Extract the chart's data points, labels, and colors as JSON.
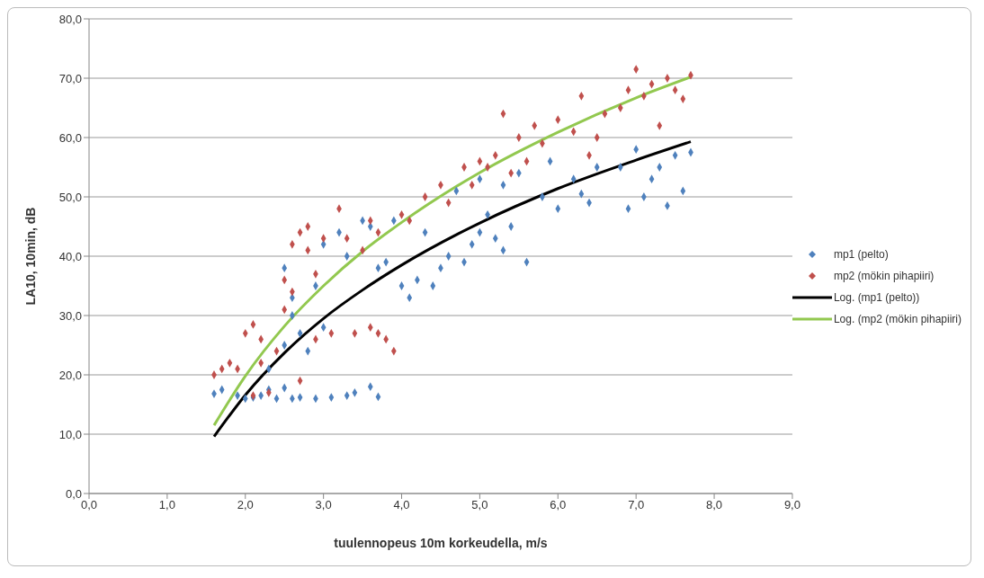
{
  "chart_data": {
    "type": "scatter",
    "xlabel": "tuulennopeus 10m korkeudella, m/s",
    "ylabel": "LA10, 10min, dB",
    "xlim": [
      0,
      9
    ],
    "ylim": [
      0,
      80
    ],
    "xticks": [
      {
        "value": 0,
        "label": "0,0"
      },
      {
        "value": 1,
        "label": "1,0"
      },
      {
        "value": 2,
        "label": "2,0"
      },
      {
        "value": 3,
        "label": "3,0"
      },
      {
        "value": 4,
        "label": "4,0"
      },
      {
        "value": 5,
        "label": "5,0"
      },
      {
        "value": 6,
        "label": "6,0"
      },
      {
        "value": 7,
        "label": "7,0"
      },
      {
        "value": 8,
        "label": "8,0"
      },
      {
        "value": 9,
        "label": "9,0"
      }
    ],
    "yticks": [
      {
        "value": 0,
        "label": "0,0"
      },
      {
        "value": 10,
        "label": "10,0"
      },
      {
        "value": 20,
        "label": "20,0"
      },
      {
        "value": 30,
        "label": "30,0"
      },
      {
        "value": 40,
        "label": "40,0"
      },
      {
        "value": 50,
        "label": "50,0"
      },
      {
        "value": 60,
        "label": "60,0"
      },
      {
        "value": 70,
        "label": "70,0"
      },
      {
        "value": 80,
        "label": "80,0"
      }
    ],
    "grid": "y",
    "legend": "right",
    "series": [
      {
        "name": "mp1 (pelto)",
        "marker": "diamond",
        "color": "#4f81bd",
        "x": [
          1.6,
          1.7,
          1.9,
          2.0,
          2.1,
          2.2,
          2.3,
          2.4,
          2.5,
          2.6,
          2.7,
          2.9,
          3.1,
          3.3,
          3.4,
          3.6,
          3.7,
          2.3,
          2.5,
          2.6,
          2.7,
          2.5,
          2.6,
          2.8,
          3.0,
          2.9,
          3.0,
          3.2,
          3.3,
          3.5,
          3.6,
          3.7,
          3.8,
          4.0,
          4.1,
          4.2,
          4.4,
          4.5,
          4.6,
          4.8,
          4.9,
          5.0,
          5.1,
          5.2,
          5.3,
          5.4,
          5.6,
          4.7,
          5.0,
          5.3,
          5.5,
          5.8,
          6.0,
          6.2,
          6.4,
          6.5,
          6.8,
          7.0,
          7.1,
          7.2,
          7.4,
          7.5,
          7.6,
          7.7,
          6.9,
          6.3,
          5.9,
          7.3,
          3.9,
          4.3
        ],
        "values": [
          16.8,
          17.5,
          16.5,
          16.0,
          16.2,
          16.5,
          17.5,
          16.0,
          17.8,
          16.0,
          16.2,
          16.0,
          16.2,
          16.5,
          17.0,
          18.0,
          16.3,
          21,
          25,
          30,
          27,
          38,
          33,
          24,
          28,
          35,
          42,
          44,
          40,
          46,
          45,
          38,
          39,
          35,
          33,
          36,
          35,
          38,
          40,
          39,
          42,
          44,
          47,
          43,
          41,
          45,
          39,
          51,
          53,
          52,
          54,
          50,
          48,
          53,
          49,
          55,
          55,
          58,
          50,
          53,
          48.5,
          57,
          51,
          57.5,
          48,
          50.5,
          56,
          55,
          46,
          44
        ]
      },
      {
        "name": "mp2 (mökin pihapiiri)",
        "marker": "diamond",
        "color": "#c0504d",
        "x": [
          1.6,
          1.7,
          1.8,
          1.9,
          2.0,
          2.1,
          2.2,
          2.1,
          2.3,
          2.2,
          2.4,
          2.5,
          2.5,
          2.6,
          2.6,
          2.7,
          2.8,
          2.8,
          2.9,
          3.0,
          3.2,
          3.3,
          3.5,
          3.6,
          3.7,
          3.6,
          3.7,
          3.8,
          3.9,
          3.4,
          3.1,
          2.9,
          2.7,
          4.0,
          4.1,
          4.3,
          4.5,
          4.6,
          4.8,
          4.9,
          5.0,
          5.1,
          5.2,
          5.3,
          5.4,
          5.5,
          5.6,
          5.8,
          6.0,
          6.2,
          6.3,
          6.5,
          6.6,
          6.8,
          6.9,
          7.0,
          7.1,
          7.2,
          7.3,
          7.4,
          7.5,
          7.6,
          7.7,
          6.4,
          5.7
        ],
        "values": [
          20,
          21,
          22,
          21,
          27,
          28.5,
          26,
          16.5,
          17,
          22,
          24,
          36,
          31,
          34,
          42,
          44,
          41,
          45,
          37,
          43,
          48,
          43,
          41,
          46,
          44,
          28,
          27,
          26,
          24,
          27,
          27,
          26,
          19,
          47,
          46,
          50,
          52,
          49,
          55,
          52,
          56,
          55,
          57,
          64,
          54,
          60,
          56,
          59,
          63,
          61,
          67,
          60,
          64,
          65,
          68,
          71.5,
          67,
          69,
          62,
          70,
          68,
          66.5,
          70.5,
          57,
          62
        ]
      },
      {
        "name": "Log. (mp1 (pelto))",
        "type": "line",
        "marker": "none",
        "color": "#000000",
        "x": [
          1.6,
          2,
          2.5,
          3,
          3.5,
          4,
          5,
          6,
          7,
          7.7
        ],
        "values": [
          9.6,
          16.6,
          23.7,
          29.5,
          34.3,
          38.5,
          45.6,
          51.4,
          56.2,
          59.3
        ]
      },
      {
        "name": "Log. (mp2 (mökin pihapiiri)",
        "type": "line",
        "marker": "none",
        "color": "#92c84f",
        "x": [
          1.6,
          2,
          2.5,
          3,
          3.5,
          4,
          5,
          6,
          7,
          7.7
        ],
        "values": [
          11.5,
          19.8,
          28.2,
          35.0,
          40.8,
          45.7,
          54.1,
          60.9,
          66.7,
          70.2
        ]
      }
    ]
  }
}
